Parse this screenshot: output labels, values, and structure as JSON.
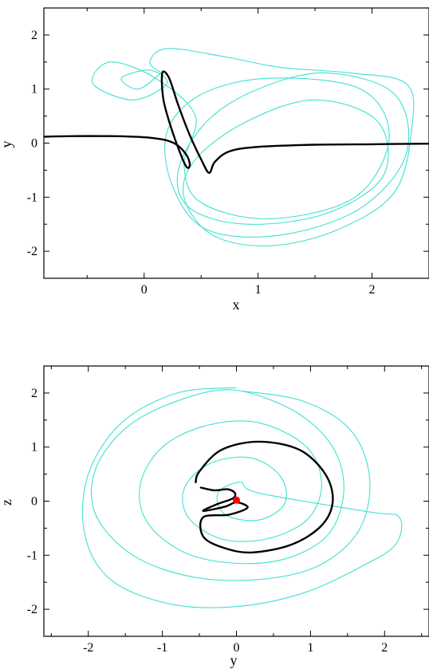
{
  "chart_data": [
    {
      "type": "line",
      "xlabel": "x",
      "ylabel": "y",
      "xlim": [
        -0.88,
        2.5
      ],
      "ylim": [
        -2.5,
        2.5
      ],
      "xticks": [
        0,
        1,
        2
      ],
      "yticks": [
        -2,
        -1,
        0,
        1,
        2
      ],
      "xtick_labels": [
        "0",
        "1",
        "2"
      ],
      "ytick_labels": [
        "-2",
        "-1",
        "0",
        "1",
        "2"
      ],
      "grid": false,
      "series": [
        {
          "color": "#40e0d0",
          "style": "attractor",
          "points": [
            [
              0.15,
              1.3
            ],
            [
              0.05,
              1.5
            ],
            [
              0.2,
              1.75
            ],
            [
              0.7,
              1.6
            ],
            [
              1.2,
              1.4
            ],
            [
              1.8,
              1.3
            ],
            [
              2.3,
              1.1
            ],
            [
              2.35,
              0.3
            ],
            [
              2.2,
              -0.9
            ],
            [
              1.7,
              -1.6
            ],
            [
              1.1,
              -1.9
            ],
            [
              0.6,
              -1.7
            ],
            [
              0.35,
              -1.0
            ],
            [
              0.45,
              -0.3
            ],
            [
              0.9,
              0.4
            ],
            [
              1.5,
              0.8
            ],
            [
              2.05,
              0.4
            ],
            [
              2.1,
              -0.6
            ],
            [
              1.6,
              -1.3
            ],
            [
              0.9,
              -1.5
            ],
            [
              0.4,
              -1.2
            ],
            [
              0.3,
              -0.5
            ],
            [
              0.55,
              0.4
            ],
            [
              1.0,
              1.0
            ],
            [
              1.6,
              1.3
            ],
            [
              2.2,
              0.9
            ],
            [
              2.3,
              -0.2
            ],
            [
              1.9,
              -1.2
            ],
            [
              1.2,
              -1.7
            ],
            [
              0.55,
              -1.6
            ],
            [
              0.25,
              -0.8
            ],
            [
              0.2,
              0.2
            ],
            [
              0.5,
              0.9
            ],
            [
              1.1,
              1.2
            ],
            [
              1.9,
              1.0
            ],
            [
              2.15,
              0.1
            ],
            [
              1.85,
              -1.0
            ],
            [
              1.1,
              -1.4
            ],
            [
              0.5,
              -1.1
            ],
            [
              0.35,
              -0.4
            ],
            [
              0.45,
              0.5
            ],
            [
              0.1,
              1.2
            ],
            [
              -0.3,
              1.5
            ],
            [
              -0.45,
              1.1
            ],
            [
              -0.1,
              0.8
            ],
            [
              0.2,
              1.1
            ],
            [
              0.05,
              1.35
            ],
            [
              -0.2,
              1.2
            ],
            [
              -0.05,
              1.0
            ],
            [
              0.15,
              1.3
            ]
          ]
        },
        {
          "color": "#000000",
          "style": "trajectory",
          "points": [
            [
              -0.88,
              0.12
            ],
            [
              -0.6,
              0.13
            ],
            [
              -0.3,
              0.13
            ],
            [
              -0.1,
              0.12
            ],
            [
              0.05,
              0.1
            ],
            [
              0.2,
              0.05
            ],
            [
              0.3,
              -0.05
            ],
            [
              0.38,
              -0.25
            ],
            [
              0.4,
              -0.42
            ],
            [
              0.36,
              -0.4
            ],
            [
              0.25,
              0.2
            ],
            [
              0.17,
              0.8
            ],
            [
              0.16,
              1.3
            ],
            [
              0.22,
              1.2
            ],
            [
              0.3,
              0.7
            ],
            [
              0.4,
              0.15
            ],
            [
              0.5,
              -0.3
            ],
            [
              0.57,
              -0.55
            ],
            [
              0.62,
              -0.35
            ],
            [
              0.75,
              -0.15
            ],
            [
              1.0,
              -0.07
            ],
            [
              1.5,
              -0.03
            ],
            [
              2.0,
              -0.02
            ],
            [
              2.5,
              -0.01
            ]
          ]
        }
      ]
    },
    {
      "type": "line",
      "xlabel": "y",
      "ylabel": "z",
      "xlim": [
        -2.6,
        2.6
      ],
      "ylim": [
        -2.5,
        2.5
      ],
      "xticks": [
        -2,
        -1,
        0,
        1,
        2
      ],
      "yticks": [
        -2,
        -1,
        0,
        1,
        2
      ],
      "xtick_labels": [
        "-2",
        "-1",
        "0",
        "1",
        "2"
      ],
      "ytick_labels": [
        "-2",
        "-1",
        "0",
        "1",
        "2"
      ],
      "grid": false,
      "series": [
        {
          "color": "#40e0d0",
          "style": "attractor",
          "points": [
            [
              0.0,
              2.05
            ],
            [
              0.9,
              1.85
            ],
            [
              1.55,
              1.3
            ],
            [
              1.8,
              0.4
            ],
            [
              1.65,
              -0.55
            ],
            [
              1.1,
              -1.2
            ],
            [
              0.3,
              -1.45
            ],
            [
              -0.6,
              -1.4
            ],
            [
              -1.4,
              -1.0
            ],
            [
              -1.9,
              -0.25
            ],
            [
              -1.9,
              0.6
            ],
            [
              -1.45,
              1.4
            ],
            [
              -0.7,
              1.9
            ],
            [
              0.0,
              2.05
            ],
            [
              0.8,
              1.65
            ],
            [
              1.3,
              1.0
            ],
            [
              1.45,
              0.2
            ],
            [
              1.25,
              -0.6
            ],
            [
              0.7,
              -1.05
            ],
            [
              0.0,
              -1.15
            ],
            [
              -0.7,
              -0.95
            ],
            [
              -1.2,
              -0.4
            ],
            [
              -1.3,
              0.3
            ],
            [
              -1.0,
              1.0
            ],
            [
              -0.4,
              1.4
            ],
            [
              0.3,
              1.45
            ],
            [
              0.95,
              1.0
            ],
            [
              1.15,
              0.3
            ],
            [
              0.95,
              -0.35
            ],
            [
              0.4,
              -0.7
            ],
            [
              -0.2,
              -0.7
            ],
            [
              -0.65,
              -0.3
            ],
            [
              -0.7,
              0.25
            ],
            [
              -0.35,
              0.7
            ],
            [
              0.2,
              0.8
            ],
            [
              0.6,
              0.45
            ],
            [
              0.65,
              -0.05
            ],
            [
              0.3,
              -0.35
            ],
            [
              -0.15,
              -0.25
            ],
            [
              -0.25,
              0.15
            ],
            [
              0.05,
              0.35
            ],
            [
              0.3,
              0.15
            ],
            [
              1.8,
              -0.2
            ],
            [
              2.2,
              -0.3
            ],
            [
              2.15,
              -0.8
            ],
            [
              1.7,
              -1.2
            ],
            [
              0.9,
              -1.7
            ],
            [
              0.0,
              -1.95
            ],
            [
              -0.9,
              -1.9
            ],
            [
              -1.7,
              -1.45
            ],
            [
              -2.05,
              -0.6
            ],
            [
              -2.0,
              0.5
            ],
            [
              -1.55,
              1.45
            ],
            [
              -0.8,
              2.0
            ],
            [
              0.0,
              2.1
            ]
          ]
        },
        {
          "color": "#000000",
          "style": "trajectory",
          "points": [
            [
              -0.48,
              0.25
            ],
            [
              -0.3,
              0.2
            ],
            [
              -0.12,
              0.22
            ],
            [
              -0.02,
              0.15
            ],
            [
              -0.05,
              0.05
            ],
            [
              -0.25,
              -0.05
            ],
            [
              -0.45,
              -0.18
            ],
            [
              -0.15,
              -0.1
            ],
            [
              0.0,
              -0.02
            ],
            [
              0.15,
              -0.12
            ],
            [
              -0.1,
              -0.25
            ],
            [
              -0.45,
              -0.3
            ],
            [
              -0.45,
              -0.65
            ],
            [
              -0.2,
              -0.85
            ],
            [
              0.2,
              -0.95
            ],
            [
              0.75,
              -0.8
            ],
            [
              1.15,
              -0.45
            ],
            [
              1.3,
              0.0
            ],
            [
              1.2,
              0.5
            ],
            [
              0.85,
              0.95
            ],
            [
              0.3,
              1.1
            ],
            [
              -0.2,
              0.95
            ],
            [
              -0.5,
              0.55
            ],
            [
              -0.55,
              0.35
            ]
          ]
        }
      ],
      "markers": [
        {
          "x": 0.0,
          "y": 0.02,
          "color": "#ff0000"
        }
      ]
    }
  ]
}
